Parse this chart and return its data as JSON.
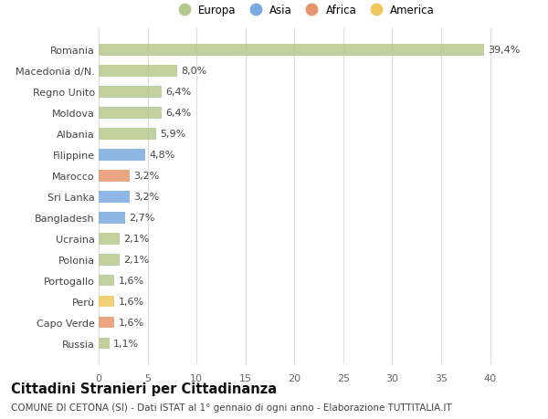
{
  "categories": [
    "Russia",
    "Capo Verde",
    "Perù",
    "Portogallo",
    "Polonia",
    "Ucraina",
    "Bangladesh",
    "Sri Lanka",
    "Marocco",
    "Filippine",
    "Albania",
    "Moldova",
    "Regno Unito",
    "Macedonia d/N.",
    "Romania"
  ],
  "values": [
    1.1,
    1.6,
    1.6,
    1.6,
    2.1,
    2.1,
    2.7,
    3.2,
    3.2,
    4.8,
    5.9,
    6.4,
    6.4,
    8.0,
    39.4
  ],
  "labels": [
    "1,1%",
    "1,6%",
    "1,6%",
    "1,6%",
    "2,1%",
    "2,1%",
    "2,7%",
    "3,2%",
    "3,2%",
    "4,8%",
    "5,9%",
    "6,4%",
    "6,4%",
    "8,0%",
    "39,4%"
  ],
  "colors": [
    "#b5c98e",
    "#e8956d",
    "#f0c75e",
    "#b5c98e",
    "#b5c98e",
    "#b5c98e",
    "#7aabe0",
    "#7aabe0",
    "#e8956d",
    "#7aabe0",
    "#b5c98e",
    "#b5c98e",
    "#b5c98e",
    "#b5c98e",
    "#b5c98e"
  ],
  "continent_colors": {
    "Europa": "#b5c98e",
    "Asia": "#7aabe0",
    "Africa": "#e8956d",
    "America": "#f0c75e"
  },
  "xlim": [
    0,
    42
  ],
  "xticks": [
    0,
    5,
    10,
    15,
    20,
    25,
    30,
    35,
    40
  ],
  "title": "Cittadini Stranieri per Cittadinanza",
  "subtitle": "COMUNE DI CETONA (SI) - Dati ISTAT al 1° gennaio di ogni anno - Elaborazione TUTTITALIA.IT",
  "bg_color": "#ffffff",
  "grid_color": "#dddddd",
  "bar_height": 0.55,
  "label_fontsize": 8,
  "tick_fontsize": 8,
  "title_fontsize": 10.5,
  "subtitle_fontsize": 7.5
}
